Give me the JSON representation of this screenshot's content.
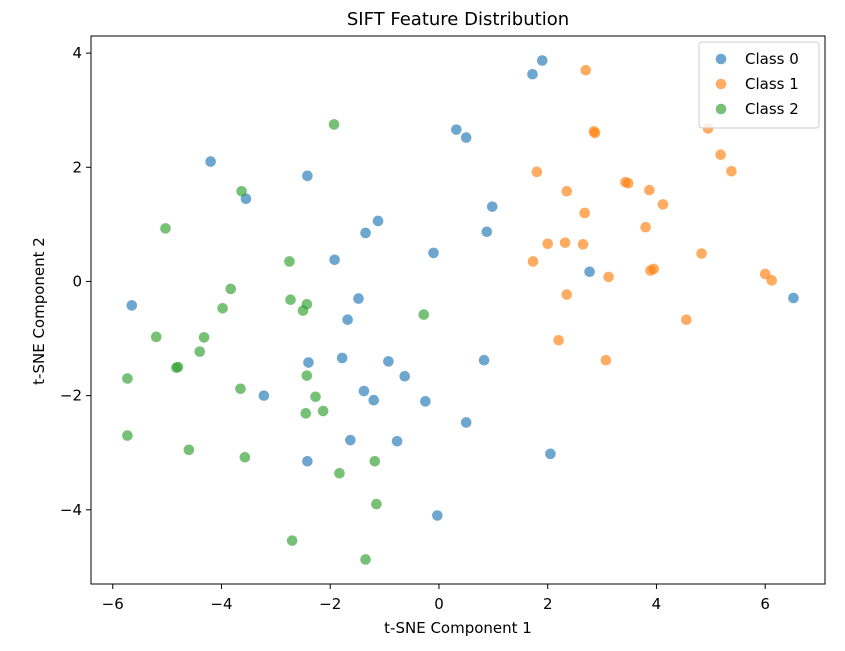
{
  "chart_data": {
    "type": "scatter",
    "title": "SIFT Feature Distribution",
    "xlabel": "t-SNE Component 1",
    "ylabel": "t-SNE Component 2",
    "xlim": [
      -6.4,
      7.1
    ],
    "ylim": [
      -5.3,
      4.3
    ],
    "xticks": [
      -6,
      -4,
      -2,
      0,
      2,
      4,
      6
    ],
    "yticks": [
      -4,
      -2,
      0,
      2,
      4
    ],
    "grid": false,
    "legend_position": "top-right",
    "series": [
      {
        "name": "Class 0",
        "color": "#1f77b4",
        "points": [
          [
            1.9,
            3.87
          ],
          [
            1.72,
            3.63
          ],
          [
            0.32,
            2.66
          ],
          [
            0.5,
            2.52
          ],
          [
            -4.2,
            2.1
          ],
          [
            -2.42,
            1.85
          ],
          [
            -3.55,
            1.45
          ],
          [
            0.98,
            1.31
          ],
          [
            -1.12,
            1.06
          ],
          [
            -1.35,
            0.85
          ],
          [
            0.88,
            0.87
          ],
          [
            -0.1,
            0.5
          ],
          [
            -1.92,
            0.38
          ],
          [
            2.77,
            0.17
          ],
          [
            6.52,
            -0.29
          ],
          [
            -5.65,
            -0.42
          ],
          [
            -1.48,
            -0.3
          ],
          [
            -1.68,
            -0.67
          ],
          [
            -2.4,
            -1.42
          ],
          [
            -1.78,
            -1.34
          ],
          [
            -0.93,
            -1.4
          ],
          [
            0.83,
            -1.38
          ],
          [
            -0.63,
            -1.66
          ],
          [
            -1.38,
            -1.92
          ],
          [
            -3.22,
            -2.0
          ],
          [
            -1.2,
            -2.08
          ],
          [
            -0.25,
            -2.1
          ],
          [
            0.5,
            -2.47
          ],
          [
            -1.63,
            -2.78
          ],
          [
            -0.77,
            -2.8
          ],
          [
            2.05,
            -3.02
          ],
          [
            -2.42,
            -3.15
          ],
          [
            -0.03,
            -4.1
          ]
        ]
      },
      {
        "name": "Class 1",
        "color": "#ff7f0e",
        "points": [
          [
            2.7,
            3.7
          ],
          [
            2.85,
            2.63
          ],
          [
            2.87,
            2.6
          ],
          [
            4.95,
            2.68
          ],
          [
            5.18,
            2.22
          ],
          [
            5.38,
            1.93
          ],
          [
            1.8,
            1.92
          ],
          [
            3.43,
            1.74
          ],
          [
            3.48,
            1.72
          ],
          [
            3.87,
            1.6
          ],
          [
            2.35,
            1.58
          ],
          [
            4.12,
            1.35
          ],
          [
            2.68,
            1.2
          ],
          [
            3.8,
            0.95
          ],
          [
            2.0,
            0.66
          ],
          [
            2.32,
            0.68
          ],
          [
            2.65,
            0.65
          ],
          [
            4.83,
            0.49
          ],
          [
            1.73,
            0.35
          ],
          [
            3.95,
            0.22
          ],
          [
            3.89,
            0.19
          ],
          [
            3.12,
            0.08
          ],
          [
            6.0,
            0.13
          ],
          [
            6.12,
            0.02
          ],
          [
            2.35,
            -0.23
          ],
          [
            4.55,
            -0.67
          ],
          [
            2.2,
            -1.03
          ],
          [
            3.07,
            -1.38
          ]
        ]
      },
      {
        "name": "Class 2",
        "color": "#2ca02c",
        "points": [
          [
            -1.93,
            2.75
          ],
          [
            -3.63,
            1.58
          ],
          [
            -5.03,
            0.93
          ],
          [
            -2.75,
            0.35
          ],
          [
            -3.83,
            -0.13
          ],
          [
            -2.73,
            -0.32
          ],
          [
            -2.43,
            -0.4
          ],
          [
            -3.98,
            -0.47
          ],
          [
            -2.5,
            -0.51
          ],
          [
            -0.28,
            -0.58
          ],
          [
            -5.2,
            -0.97
          ],
          [
            -4.32,
            -0.98
          ],
          [
            -4.4,
            -1.23
          ],
          [
            -4.8,
            -1.5
          ],
          [
            -4.83,
            -1.51
          ],
          [
            -2.43,
            -1.65
          ],
          [
            -5.73,
            -1.7
          ],
          [
            -3.65,
            -1.88
          ],
          [
            -2.27,
            -2.02
          ],
          [
            -2.13,
            -2.27
          ],
          [
            -2.45,
            -2.31
          ],
          [
            -5.73,
            -2.7
          ],
          [
            -4.6,
            -2.95
          ],
          [
            -3.57,
            -3.08
          ],
          [
            -1.18,
            -3.15
          ],
          [
            -1.83,
            -3.36
          ],
          [
            -1.15,
            -3.9
          ],
          [
            -2.7,
            -4.54
          ],
          [
            -1.35,
            -4.87
          ]
        ]
      }
    ]
  }
}
